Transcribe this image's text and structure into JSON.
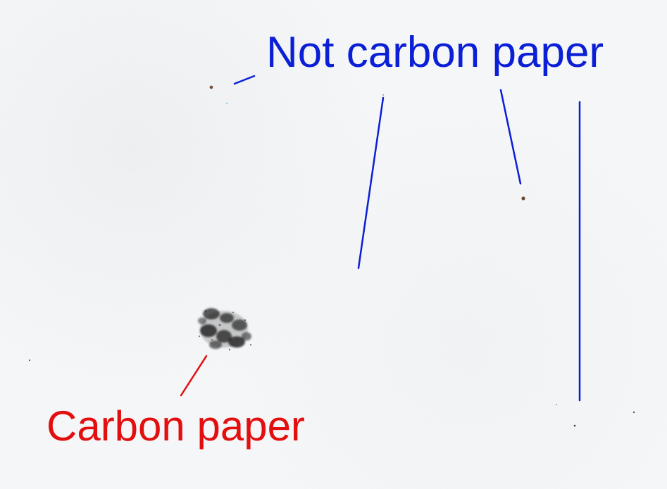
{
  "labels": {
    "not_carbon_paper": "Not carbon paper",
    "carbon_paper": "Carbon paper"
  },
  "colors": {
    "not_carbon_paper": "#0a1fd6",
    "carbon_paper": "#e30f0f",
    "paper": "#f6f7f8",
    "carbon_smudge": "#2b2b2b",
    "speck": "#6a4a3a"
  }
}
